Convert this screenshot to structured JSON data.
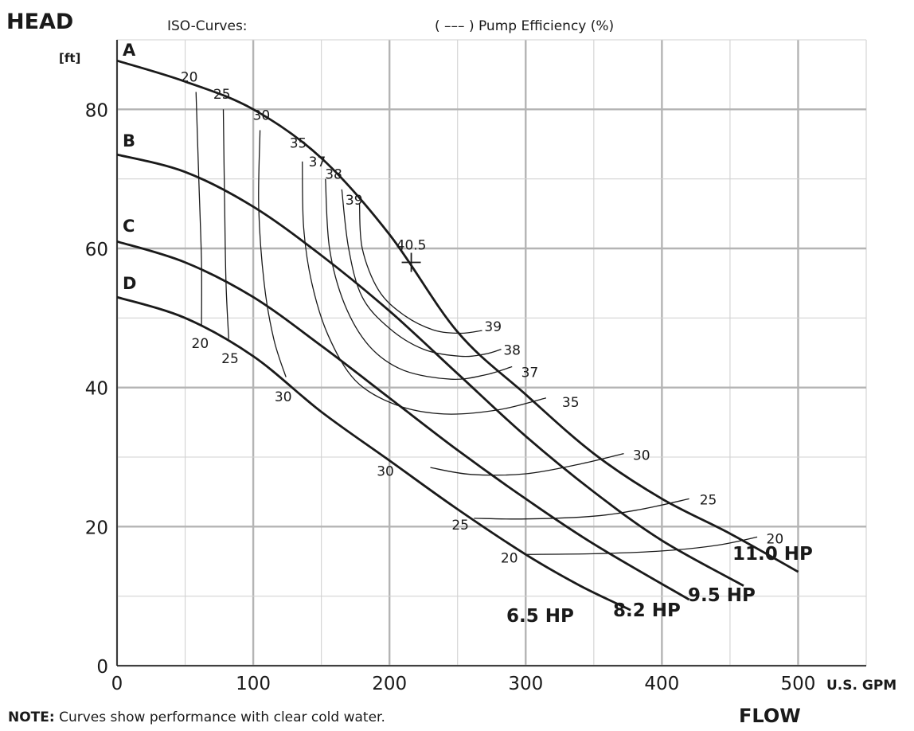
{
  "chart_data": {
    "type": "line",
    "title_left": "HEAD",
    "ylabel_unit": "[ft]",
    "xlabel": "U.S. GPM",
    "xlabel_footer": "FLOW",
    "iso_label": "ISO-Curves:",
    "legend_text": "( ––– ) Pump Efficiency (%)",
    "xlim": [
      0,
      550
    ],
    "ylim": [
      0,
      90
    ],
    "xticks": [
      "0",
      "100",
      "200",
      "300",
      "400",
      "500"
    ],
    "yticks": [
      "0",
      "20",
      "40",
      "60",
      "80"
    ],
    "grid": true,
    "series": [
      {
        "name": "A",
        "power": "11.0 HP",
        "points": [
          [
            0,
            87
          ],
          [
            50,
            84
          ],
          [
            100,
            80
          ],
          [
            150,
            73
          ],
          [
            200,
            62
          ],
          [
            250,
            48
          ],
          [
            300,
            39
          ],
          [
            350,
            30.5
          ],
          [
            400,
            24
          ],
          [
            450,
            19
          ],
          [
            500,
            13.5
          ]
        ]
      },
      {
        "name": "B",
        "power": "9.5 HP",
        "points": [
          [
            0,
            73.5
          ],
          [
            50,
            71
          ],
          [
            100,
            66
          ],
          [
            150,
            59
          ],
          [
            200,
            51
          ],
          [
            250,
            42
          ],
          [
            300,
            33
          ],
          [
            350,
            25
          ],
          [
            400,
            18
          ],
          [
            460,
            11.5
          ]
        ]
      },
      {
        "name": "C",
        "power": "8.2 HP",
        "points": [
          [
            0,
            61
          ],
          [
            50,
            58
          ],
          [
            100,
            53
          ],
          [
            150,
            46
          ],
          [
            200,
            38.5
          ],
          [
            250,
            31
          ],
          [
            300,
            24
          ],
          [
            350,
            17.5
          ],
          [
            420,
            9.5
          ]
        ]
      },
      {
        "name": "D",
        "power": "6.5 HP",
        "points": [
          [
            0,
            53
          ],
          [
            50,
            50
          ],
          [
            100,
            44.5
          ],
          [
            150,
            36.5
          ],
          [
            200,
            29.5
          ],
          [
            250,
            22.5
          ],
          [
            300,
            16
          ],
          [
            340,
            11.5
          ],
          [
            377,
            8
          ]
        ]
      }
    ],
    "efficiency_curves": [
      {
        "label": "20",
        "points": [
          [
            58,
            82.5
          ],
          [
            60,
            70
          ],
          [
            62,
            58
          ],
          [
            62,
            49
          ]
        ]
      },
      {
        "label": "25",
        "points": [
          [
            78,
            80
          ],
          [
            79,
            66
          ],
          [
            80,
            55
          ],
          [
            82,
            47
          ]
        ]
      },
      {
        "label": "30",
        "points": [
          [
            105,
            77
          ],
          [
            104,
            66
          ],
          [
            108,
            55
          ],
          [
            115,
            47
          ],
          [
            124,
            41.5
          ]
        ]
      },
      {
        "label": "35",
        "points": [
          [
            136,
            72.5
          ],
          [
            137,
            63
          ],
          [
            143,
            55
          ],
          [
            155,
            47.5
          ],
          [
            175,
            41
          ],
          [
            205,
            37.5
          ],
          [
            240,
            36.2
          ],
          [
            280,
            36.8
          ],
          [
            315,
            38.5
          ]
        ]
      },
      {
        "label": "37",
        "points": [
          [
            153,
            70
          ],
          [
            156,
            60
          ],
          [
            167,
            52
          ],
          [
            185,
            46
          ],
          [
            210,
            42.5
          ],
          [
            245,
            41.2
          ],
          [
            270,
            41.8
          ],
          [
            290,
            43
          ]
        ]
      },
      {
        "label": "38",
        "points": [
          [
            165,
            68.5
          ],
          [
            170,
            60
          ],
          [
            180,
            53
          ],
          [
            200,
            48.5
          ],
          [
            225,
            45.5
          ],
          [
            252,
            44.5
          ],
          [
            270,
            44.8
          ],
          [
            282,
            45.5
          ]
        ]
      },
      {
        "label": "39",
        "points": [
          [
            178,
            66.5
          ],
          [
            180,
            60
          ],
          [
            192,
            54
          ],
          [
            210,
            50.5
          ],
          [
            232,
            48.3
          ],
          [
            252,
            47.8
          ],
          [
            268,
            48.2
          ]
        ]
      },
      {
        "label": "30",
        "points": [
          [
            230,
            28.5
          ],
          [
            260,
            27.5
          ],
          [
            300,
            27.6
          ],
          [
            340,
            29
          ],
          [
            372,
            30.5
          ]
        ]
      },
      {
        "label": "25",
        "points": [
          [
            262,
            21.2
          ],
          [
            300,
            21.1
          ],
          [
            350,
            21.5
          ],
          [
            385,
            22.5
          ],
          [
            420,
            24
          ]
        ]
      },
      {
        "label": "20",
        "points": [
          [
            299,
            16
          ],
          [
            350,
            16.1
          ],
          [
            400,
            16.5
          ],
          [
            440,
            17.3
          ],
          [
            470,
            18.5
          ]
        ]
      }
    ],
    "best_efficiency_point": {
      "label": "40.5",
      "x": 216,
      "y": 58
    },
    "point_labels": [
      {
        "text": "20",
        "x": 53,
        "y": 84,
        "anchor": "middle"
      },
      {
        "text": "25",
        "x": 77,
        "y": 81.5,
        "anchor": "middle"
      },
      {
        "text": "30",
        "x": 106,
        "y": 78.5,
        "anchor": "middle"
      },
      {
        "text": "35",
        "x": 133,
        "y": 74.5,
        "anchor": "middle"
      },
      {
        "text": "37",
        "x": 147,
        "y": 71.8,
        "anchor": "middle"
      },
      {
        "text": "38",
        "x": 159,
        "y": 70,
        "anchor": "middle"
      },
      {
        "text": "39",
        "x": 174,
        "y": 66.3,
        "anchor": "middle"
      },
      {
        "text": "39",
        "x": 276,
        "y": 48.1,
        "anchor": "middle"
      },
      {
        "text": "38",
        "x": 290,
        "y": 44.7,
        "anchor": "middle"
      },
      {
        "text": "37",
        "x": 303,
        "y": 41.5,
        "anchor": "middle"
      },
      {
        "text": "35",
        "x": 333,
        "y": 37.2,
        "anchor": "middle"
      },
      {
        "text": "30",
        "x": 385,
        "y": 29.6,
        "anchor": "middle"
      },
      {
        "text": "25",
        "x": 434,
        "y": 23.2,
        "anchor": "middle"
      },
      {
        "text": "20",
        "x": 483,
        "y": 17.6,
        "anchor": "middle"
      },
      {
        "text": "20",
        "x": 61,
        "y": 45.7,
        "anchor": "middle"
      },
      {
        "text": "25",
        "x": 83,
        "y": 43.5,
        "anchor": "middle"
      },
      {
        "text": "30",
        "x": 122,
        "y": 38,
        "anchor": "middle"
      },
      {
        "text": "30",
        "x": 197,
        "y": 27.3,
        "anchor": "middle"
      },
      {
        "text": "25",
        "x": 252,
        "y": 19.6,
        "anchor": "middle"
      },
      {
        "text": "20",
        "x": 288,
        "y": 14.8,
        "anchor": "middle"
      }
    ]
  },
  "footer": {
    "note_label": "NOTE:",
    "note_text": " Curves show performance with clear cold water."
  }
}
